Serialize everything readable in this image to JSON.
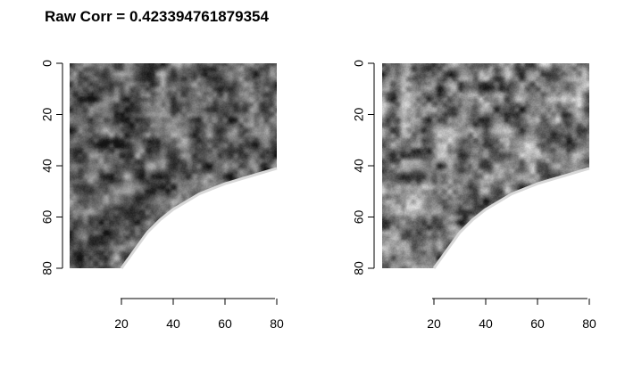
{
  "chart_data": {
    "type": "heatmap",
    "title": "Raw Corr = 0.423394761879354",
    "panels": [
      {
        "name": "left",
        "xlim": [
          0,
          80
        ],
        "ylim": [
          0,
          80
        ],
        "x_ticks": [
          "20",
          "40",
          "60",
          "80"
        ],
        "y_ticks": [
          "0",
          "20",
          "40",
          "60",
          "80"
        ],
        "mask_boundary": [
          [
            80,
            41
          ],
          [
            70,
            44
          ],
          [
            60,
            47
          ],
          [
            50,
            51
          ],
          [
            45,
            54
          ],
          [
            40,
            57
          ],
          [
            35,
            61
          ],
          [
            30,
            66
          ],
          [
            25,
            73
          ],
          [
            20,
            80
          ]
        ],
        "colormap": "grayscale",
        "seed": 7
      },
      {
        "name": "right",
        "xlim": [
          0,
          80
        ],
        "ylim": [
          0,
          80
        ],
        "x_ticks": [
          "20",
          "40",
          "60",
          "80"
        ],
        "y_ticks": [
          "0",
          "20",
          "40",
          "60",
          "80"
        ],
        "mask_boundary": [
          [
            80,
            41
          ],
          [
            70,
            44
          ],
          [
            60,
            47
          ],
          [
            50,
            51
          ],
          [
            45,
            54
          ],
          [
            40,
            57
          ],
          [
            35,
            61
          ],
          [
            30,
            66
          ],
          [
            25,
            73
          ],
          [
            20,
            80
          ]
        ],
        "colormap": "grayscale",
        "seed": 13
      }
    ]
  }
}
